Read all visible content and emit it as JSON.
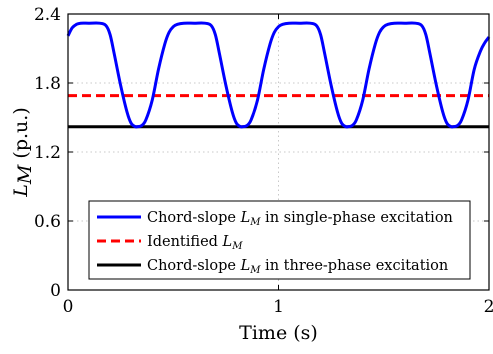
{
  "chart_data": {
    "type": "line",
    "xlabel": "Time (s)",
    "ylabel": {
      "symbol": "L",
      "subscript": "M",
      "unit": "(p.u.)"
    },
    "xlim": [
      0,
      2
    ],
    "ylim": [
      0,
      2.4
    ],
    "xticks": [
      {
        "value": 0,
        "label": "0"
      },
      {
        "value": 1,
        "label": "1"
      },
      {
        "value": 2,
        "label": "2"
      }
    ],
    "yticks": [
      {
        "value": 0,
        "label": "0"
      },
      {
        "value": 0.6,
        "label": "0.6"
      },
      {
        "value": 1.2,
        "label": "1.2"
      },
      {
        "value": 1.8,
        "label": "1.8"
      },
      {
        "value": 2.4,
        "label": "2.4"
      }
    ],
    "grid": true,
    "legend_position": "bottom-center",
    "series": [
      {
        "name": {
          "prefix": "Chord-slope ",
          "symbol": "L",
          "subscript": "M",
          "suffix": " in single-phase excitation"
        },
        "color": "#0000ff",
        "style": "solid",
        "x": [
          0,
          0.02,
          0.04,
          0.06,
          0.1,
          0.15,
          0.18,
          0.2,
          0.22,
          0.25,
          0.28,
          0.3,
          0.32,
          0.33,
          0.35,
          0.37,
          0.4,
          0.43,
          0.46,
          0.48,
          0.5,
          0.52,
          0.55,
          0.6,
          0.65,
          0.68,
          0.7,
          0.72,
          0.75,
          0.78,
          0.8,
          0.82,
          0.83,
          0.85,
          0.87,
          0.9,
          0.93,
          0.96,
          0.98,
          1.0,
          1.02,
          1.05,
          1.1,
          1.15,
          1.18,
          1.2,
          1.22,
          1.25,
          1.28,
          1.3,
          1.32,
          1.33,
          1.35,
          1.37,
          1.4,
          1.43,
          1.46,
          1.48,
          1.5,
          1.52,
          1.55,
          1.6,
          1.65,
          1.68,
          1.7,
          1.72,
          1.75,
          1.78,
          1.8,
          1.82,
          1.83,
          1.85,
          1.87,
          1.9,
          1.93,
          1.96,
          1.98,
          2.0
        ],
        "y": [
          2.21,
          2.28,
          2.31,
          2.32,
          2.32,
          2.32,
          2.3,
          2.22,
          2.05,
          1.78,
          1.55,
          1.45,
          1.42,
          1.42,
          1.43,
          1.48,
          1.65,
          1.92,
          2.14,
          2.24,
          2.29,
          2.31,
          2.32,
          2.32,
          2.32,
          2.3,
          2.22,
          2.05,
          1.78,
          1.55,
          1.45,
          1.42,
          1.42,
          1.43,
          1.48,
          1.65,
          1.92,
          2.14,
          2.24,
          2.29,
          2.31,
          2.32,
          2.32,
          2.32,
          2.3,
          2.22,
          2.05,
          1.78,
          1.55,
          1.45,
          1.42,
          1.42,
          1.43,
          1.48,
          1.65,
          1.92,
          2.14,
          2.24,
          2.29,
          2.31,
          2.32,
          2.32,
          2.32,
          2.3,
          2.22,
          2.05,
          1.78,
          1.55,
          1.45,
          1.42,
          1.42,
          1.43,
          1.48,
          1.65,
          1.92,
          2.08,
          2.15,
          2.2
        ]
      },
      {
        "name": {
          "prefix": "Identified ",
          "symbol": "L",
          "subscript": "M",
          "suffix": ""
        },
        "color": "#ff0000",
        "style": "dashed",
        "x": [
          0,
          2
        ],
        "y": [
          1.69,
          1.69
        ]
      },
      {
        "name": {
          "prefix": "Chord-slope ",
          "symbol": "L",
          "subscript": "M",
          "suffix": " in three-phase excitation"
        },
        "color": "#000000",
        "style": "solid",
        "x": [
          0,
          2
        ],
        "y": [
          1.42,
          1.42
        ]
      }
    ]
  }
}
